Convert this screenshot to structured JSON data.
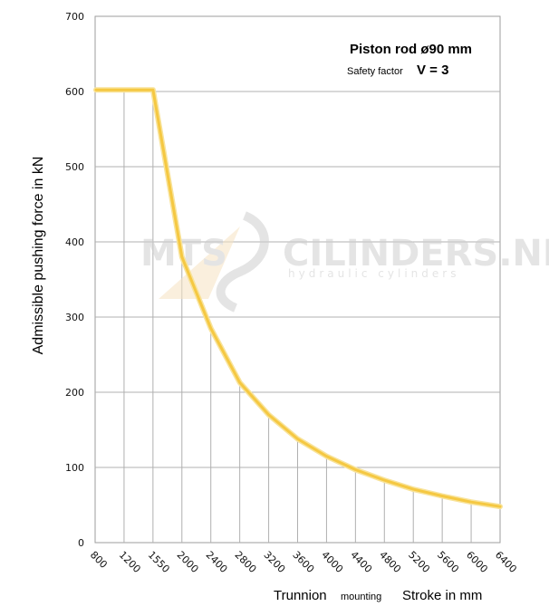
{
  "chart_data": {
    "type": "line",
    "title": "Piston rod ø90 mm",
    "subtitle_label": "Safety factor",
    "subtitle_value": "V = 3",
    "ylabel": "Admissible pushing force in kN",
    "xlabel_main": "Trunnion",
    "xlabel_small": "mounting",
    "xlabel_right": "Stroke in mm",
    "ylim": [
      0,
      700
    ],
    "yticks": [
      0,
      100,
      200,
      300,
      400,
      500,
      600,
      700
    ],
    "categories": [
      "800",
      "1200",
      "1550",
      "2000",
      "2400",
      "2800",
      "3200",
      "3600",
      "4000",
      "4400",
      "4800",
      "5200",
      "5600",
      "6000",
      "6400"
    ],
    "series": [
      {
        "values": [
          602,
          602,
          602,
          380,
          285,
          213,
          170,
          138,
          115,
          97,
          83,
          71,
          62,
          54,
          48
        ]
      }
    ],
    "line_color": "#f5c842",
    "grid": true,
    "watermark": "MTS CILINDERS.NL hydraulic cylinders"
  }
}
